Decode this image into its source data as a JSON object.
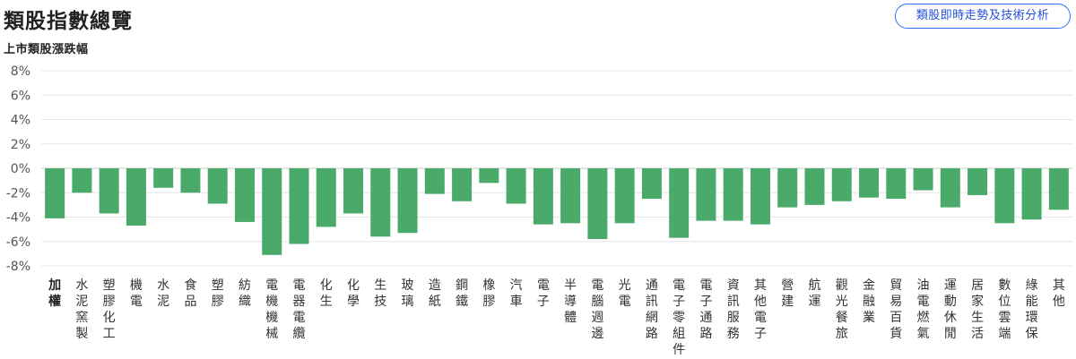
{
  "header": {
    "title": "類股指數總覽",
    "tech_button_label": "類股即時走勢及技術分析"
  },
  "chart_data": {
    "type": "bar",
    "title": "上市類股漲跌幅",
    "xlabel": "",
    "ylabel": "",
    "ylim": [
      -8,
      8
    ],
    "yticks": [
      8,
      6,
      4,
      2,
      0,
      -2,
      -4,
      -6,
      -8
    ],
    "ytick_labels": [
      "8%",
      "6%",
      "4%",
      "2%",
      "0%",
      "-2%",
      "-4%",
      "-6%",
      "-8%"
    ],
    "grid": true,
    "bar_color": "#4aaa6a",
    "categories": [
      "加權",
      "水泥窯製",
      "塑膠化工",
      "機電",
      "水泥",
      "食品",
      "塑膠",
      "紡織",
      "電機機械",
      "電器電纜",
      "化生",
      "化學",
      "生技",
      "玻璃",
      "造紙",
      "鋼鐵",
      "橡膠",
      "汽車",
      "電子",
      "半導體",
      "電腦週邊",
      "光電",
      "通訊網路",
      "電子零組件",
      "電子通路",
      "資訊服務",
      "其他電子",
      "營建",
      "航運",
      "觀光餐旅",
      "金融業",
      "貿易百貨",
      "油電燃氣",
      "運動休閒",
      "居家生活",
      "數位雲端",
      "綠能環保",
      "其他"
    ],
    "values": [
      -4.1,
      -2.0,
      -3.7,
      -4.7,
      -1.6,
      -2.0,
      -2.9,
      -4.4,
      -7.1,
      -6.2,
      -4.8,
      -3.7,
      -5.6,
      -5.3,
      -2.1,
      -2.7,
      -1.2,
      -2.9,
      -4.6,
      -4.5,
      -5.8,
      -4.5,
      -2.5,
      -5.7,
      -4.3,
      -4.3,
      -4.6,
      -3.2,
      -3.0,
      -2.7,
      -2.4,
      -2.5,
      -1.8,
      -3.2,
      -2.2,
      -4.5,
      -4.2,
      -3.4
    ],
    "bold_categories": [
      "加權"
    ]
  }
}
